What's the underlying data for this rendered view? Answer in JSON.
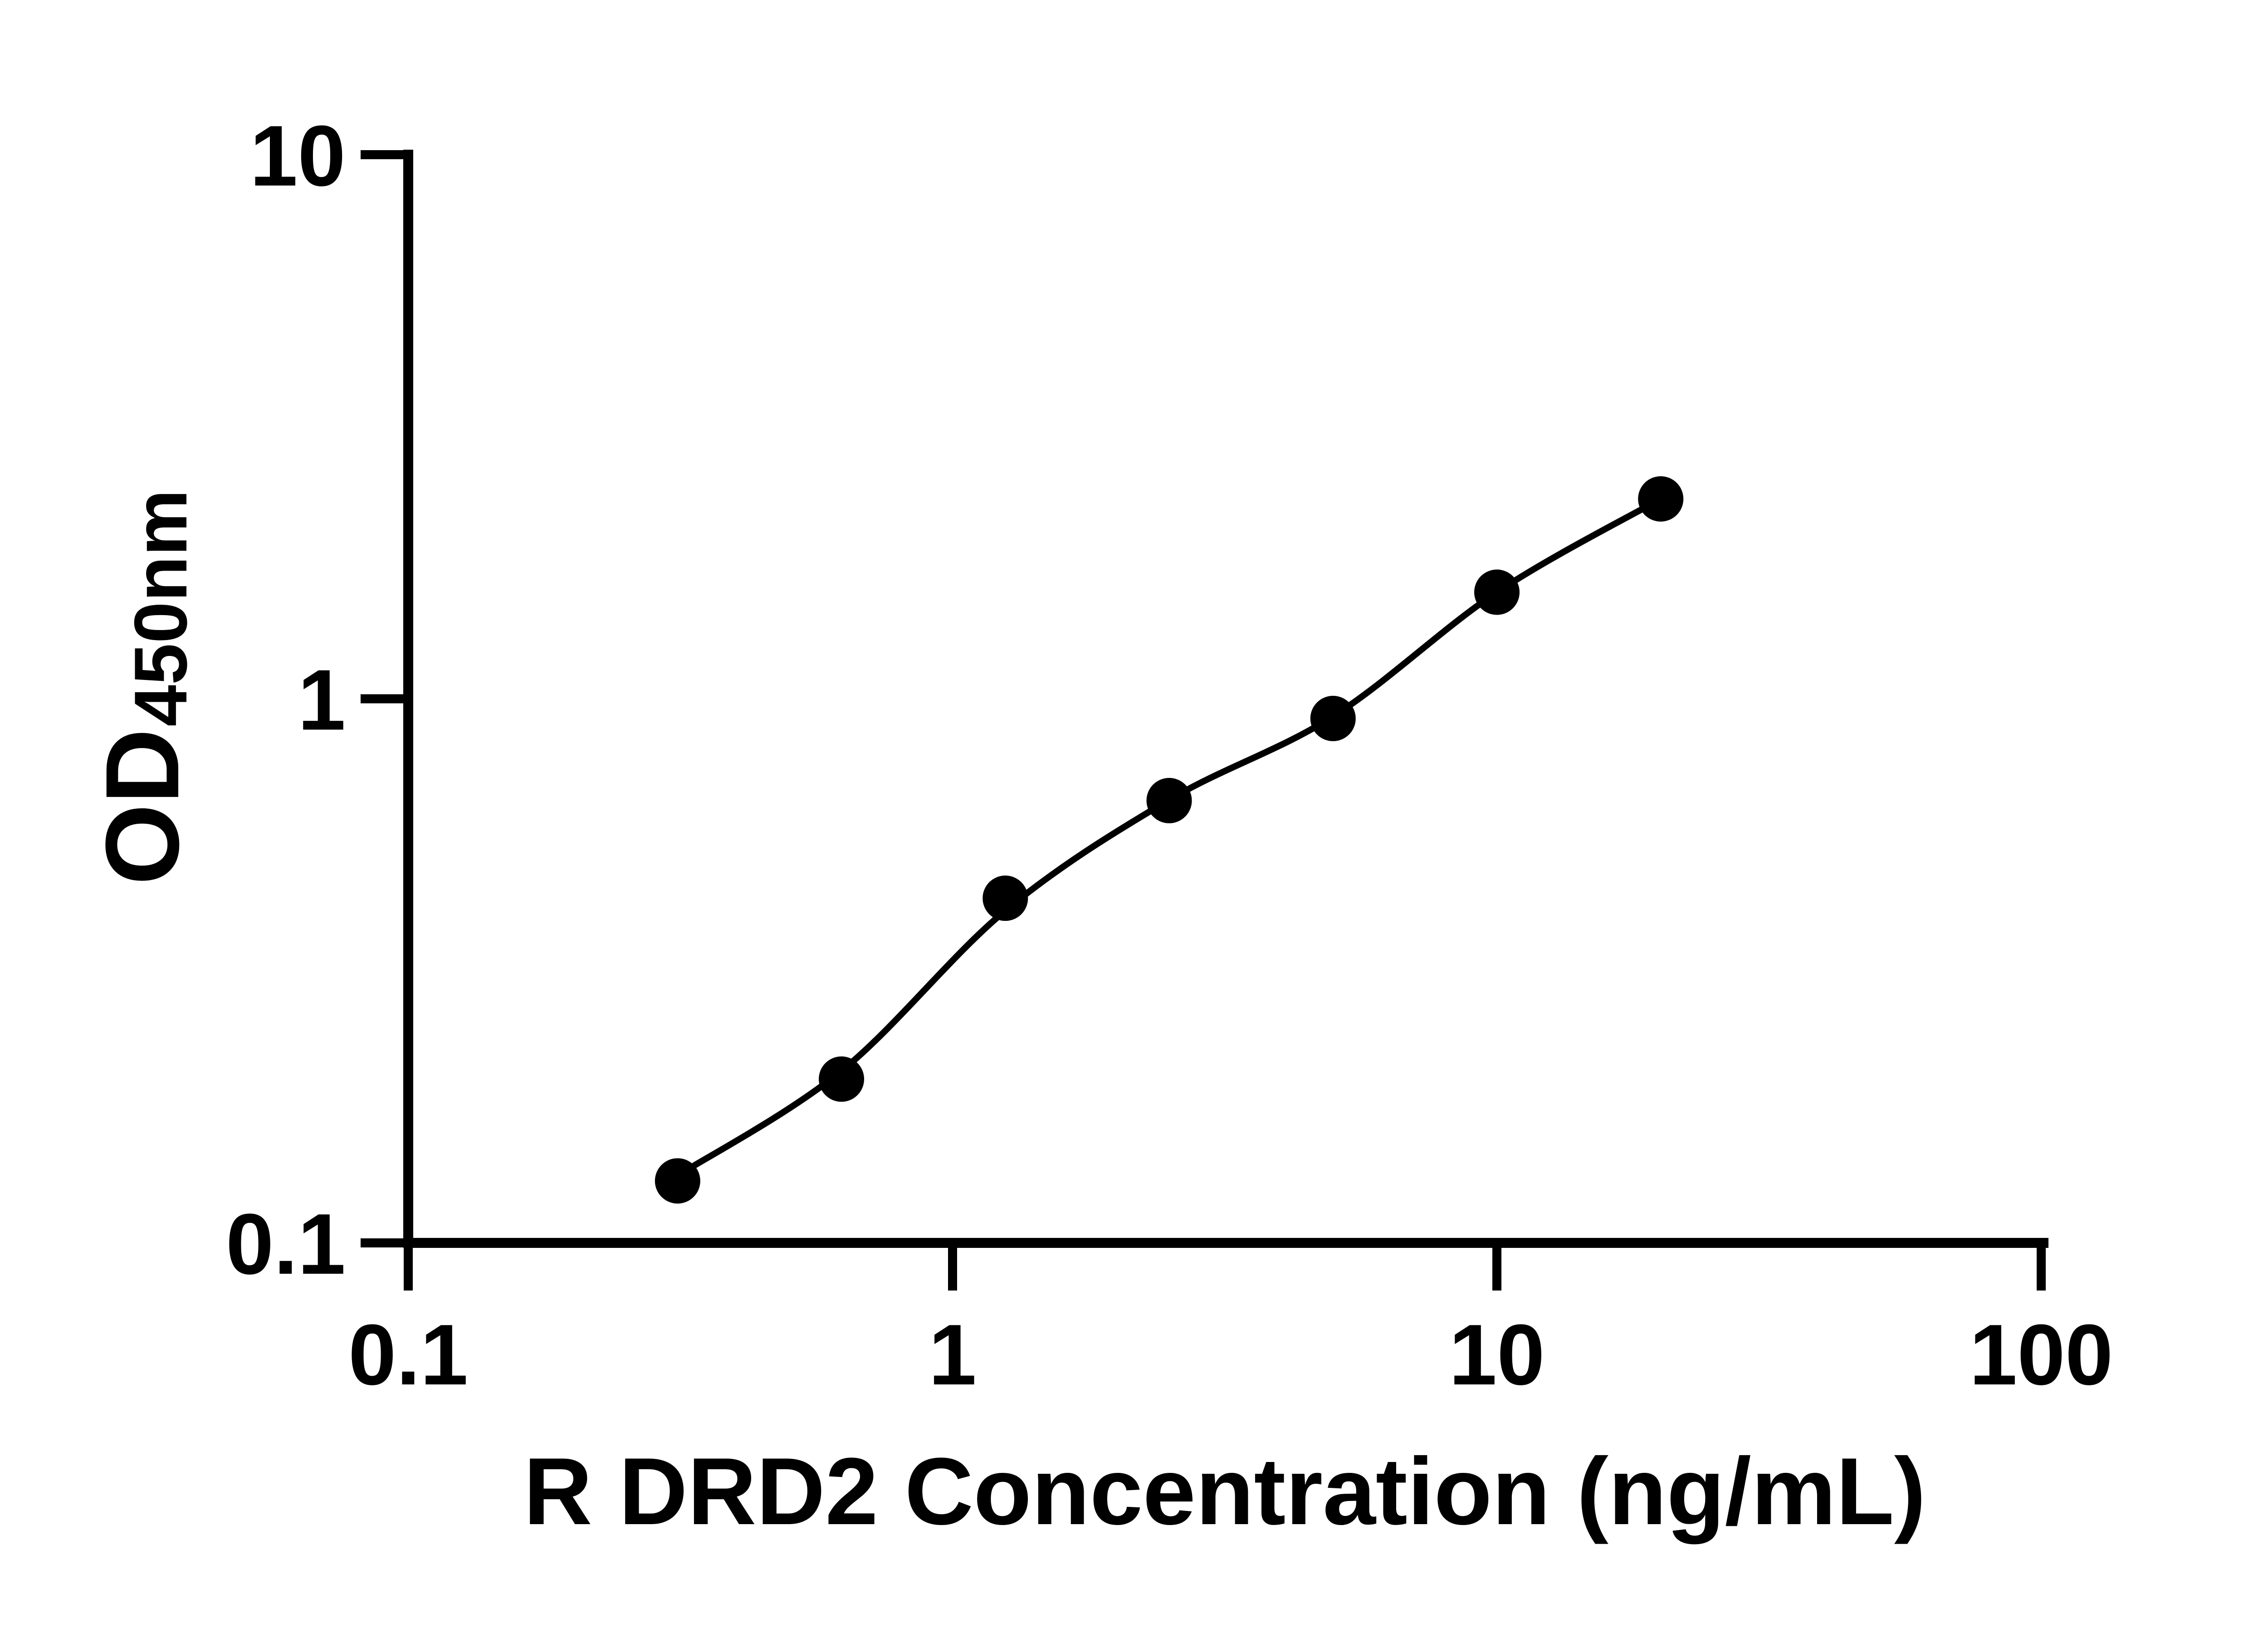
{
  "figure": {
    "background_color": "#ffffff",
    "ink_color": "#000000"
  },
  "chart_data": {
    "type": "scatter",
    "subtype": "log-log standard curve with fitted line",
    "title": "",
    "xlabel": "R DRD2 Concentration (ng/mL)",
    "ylabel_main": "OD",
    "ylabel_sub": "450nm",
    "xlim": [
      0.1,
      100
    ],
    "ylim": [
      0.1,
      10
    ],
    "log_x": true,
    "log_y": true,
    "grid": false,
    "legend": "none",
    "x_ticks": [
      0.1,
      1,
      10,
      100
    ],
    "x_tick_labels": [
      "0.1",
      "1",
      "10",
      "100"
    ],
    "y_ticks": [
      0.1,
      1,
      10
    ],
    "y_tick_labels": [
      "0.1",
      "1",
      "10"
    ],
    "series": [
      {
        "name": "standard-points",
        "marker": "filled-circle",
        "color": "#000000",
        "x": [
          0.3125,
          0.625,
          1.25,
          2.5,
          5,
          10,
          20
        ],
        "y": [
          0.13,
          0.2,
          0.43,
          0.65,
          0.92,
          1.57,
          2.33
        ]
      }
    ],
    "fit_line": {
      "name": "fitted-curve",
      "color": "#000000",
      "x": [
        0.3125,
        0.625,
        1.25,
        2.5,
        5,
        10,
        20
      ],
      "y": [
        0.133,
        0.207,
        0.408,
        0.652,
        0.928,
        1.57,
        2.33
      ]
    }
  }
}
